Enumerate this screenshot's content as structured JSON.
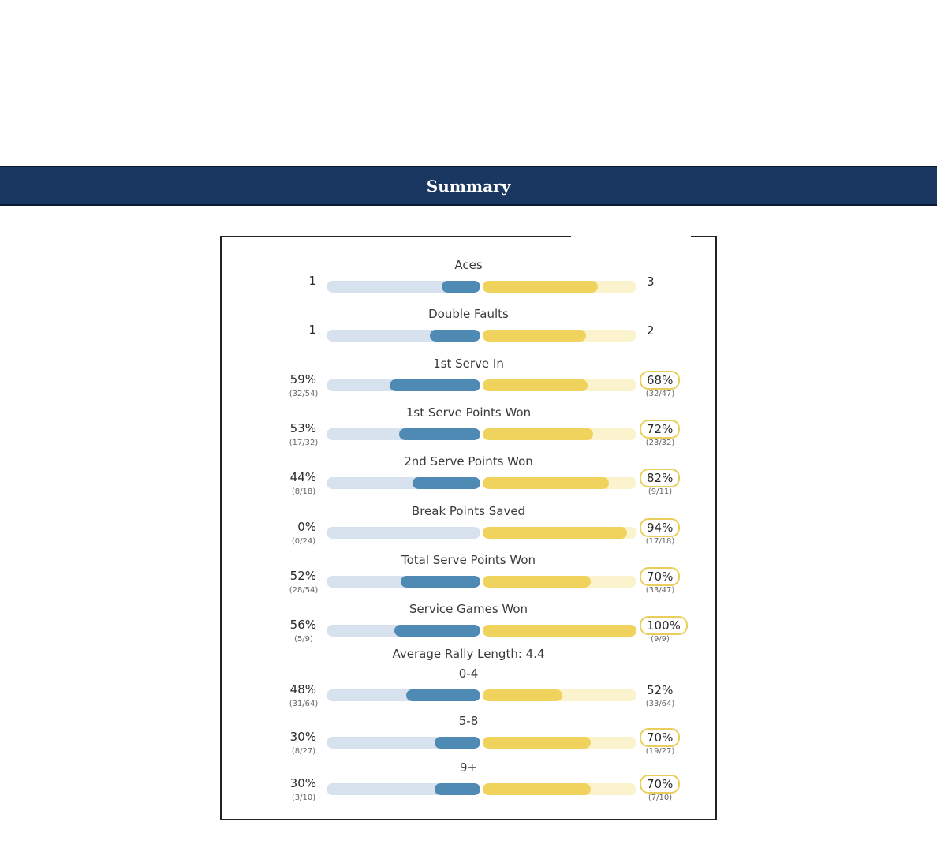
{
  "header": {
    "title": "Summary"
  },
  "stats": [
    {
      "label": "Aces",
      "left_value": "1",
      "left_sub": "",
      "left_fill": 0.25,
      "right_value": "3",
      "right_sub": "",
      "right_fill": 0.75,
      "right_highlight": false
    },
    {
      "label": "Double Faults",
      "left_value": "1",
      "left_sub": "",
      "left_fill": 0.33,
      "right_value": "2",
      "right_sub": "",
      "right_fill": 0.67,
      "right_highlight": false
    },
    {
      "label": "1st Serve In",
      "left_value": "59%",
      "left_sub": "(32/54)",
      "left_fill": 0.59,
      "right_value": "68%",
      "right_sub": "(32/47)",
      "right_fill": 0.68,
      "right_highlight": true
    },
    {
      "label": "1st Serve Points Won",
      "left_value": "53%",
      "left_sub": "(17/32)",
      "left_fill": 0.53,
      "right_value": "72%",
      "right_sub": "(23/32)",
      "right_fill": 0.72,
      "right_highlight": true
    },
    {
      "label": "2nd Serve Points Won",
      "left_value": "44%",
      "left_sub": "(8/18)",
      "left_fill": 0.44,
      "right_value": "82%",
      "right_sub": "(9/11)",
      "right_fill": 0.82,
      "right_highlight": true
    },
    {
      "label": "Break Points Saved",
      "left_value": "0%",
      "left_sub": "(0/24)",
      "left_fill": 0.0,
      "right_value": "94%",
      "right_sub": "(17/18)",
      "right_fill": 0.94,
      "right_highlight": true
    },
    {
      "label": "Total Serve Points Won",
      "left_value": "52%",
      "left_sub": "(28/54)",
      "left_fill": 0.52,
      "right_value": "70%",
      "right_sub": "(33/47)",
      "right_fill": 0.7,
      "right_highlight": true
    },
    {
      "label": "Service Games Won",
      "left_value": "56%",
      "left_sub": "(5/9)",
      "left_fill": 0.56,
      "right_value": "100%",
      "right_sub": "(9/9)",
      "right_fill": 1.0,
      "right_highlight": true
    }
  ],
  "rally": {
    "heading": "Average Rally Length: 4.4",
    "rows": [
      {
        "label": "0-4",
        "left_value": "48%",
        "left_sub": "(31/64)",
        "left_fill": 0.48,
        "right_value": "52%",
        "right_sub": "(33/64)",
        "right_fill": 0.52,
        "right_highlight": false
      },
      {
        "label": "5-8",
        "left_value": "30%",
        "left_sub": "(8/27)",
        "left_fill": 0.3,
        "right_value": "70%",
        "right_sub": "(19/27)",
        "right_fill": 0.7,
        "right_highlight": true
      },
      {
        "label": "9+",
        "left_value": "30%",
        "left_sub": "(3/10)",
        "left_fill": 0.3,
        "right_value": "70%",
        "right_sub": "(7/10)",
        "right_fill": 0.7,
        "right_highlight": true
      }
    ]
  },
  "colors": {
    "header_bg": "#193760",
    "left_fill": "#4f8ab5",
    "left_track": "#d8e2ee",
    "right_fill": "#f0d35d",
    "right_track": "#faf3cd",
    "highlight_border": "#e8cf5a"
  }
}
